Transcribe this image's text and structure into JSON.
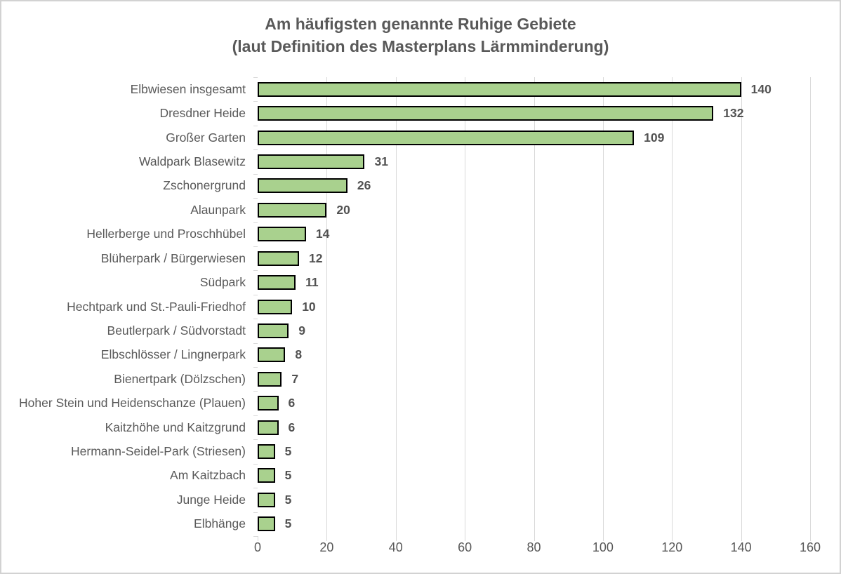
{
  "chart_data": {
    "type": "bar",
    "orientation": "horizontal",
    "title": "Am häufigsten genannte Ruhige Gebiete",
    "subtitle": "(laut Definition des Masterplans Lärmminderung)",
    "categories": [
      "Elbwiesen insgesamt",
      "Dresdner Heide",
      "Großer Garten",
      "Waldpark Blasewitz",
      "Zschonergrund",
      "Alaunpark",
      "Hellerberge und Proschhübel",
      "Blüherpark / Bürgerwiesen",
      "Südpark",
      "Hechtpark und St.-Pauli-Friedhof",
      "Beutlerpark / Südvorstadt",
      "Elbschlösser / Lingnerpark",
      "Bienertpark (Dölzschen)",
      "Hoher Stein und Heidenschanze (Plauen)",
      "Kaitzhöhe und Kaitzgrund",
      "Hermann-Seidel-Park (Striesen)",
      "Am Kaitzbach",
      "Junge Heide",
      "Elbhänge"
    ],
    "values": [
      140,
      132,
      109,
      31,
      26,
      20,
      14,
      12,
      11,
      10,
      9,
      8,
      7,
      6,
      6,
      5,
      5,
      5,
      5
    ],
    "value_labels": [
      "140",
      "132",
      "109",
      "31",
      "26",
      "20",
      "14",
      "12",
      "11",
      "10",
      "9",
      "8",
      "7",
      "6",
      "6",
      "5",
      "5",
      "5",
      "5"
    ],
    "xlim": [
      0,
      160
    ],
    "x_ticks": [
      0,
      20,
      40,
      60,
      80,
      100,
      120,
      140,
      160
    ],
    "grid": "vertical-on",
    "legend": "none",
    "colors": {
      "bar_fill": "#a9d18e",
      "bar_border": "#000000",
      "gridline": "#d9d9d9",
      "axis_text": "#595959",
      "title_text": "#595959",
      "value_text": "#525252"
    }
  }
}
